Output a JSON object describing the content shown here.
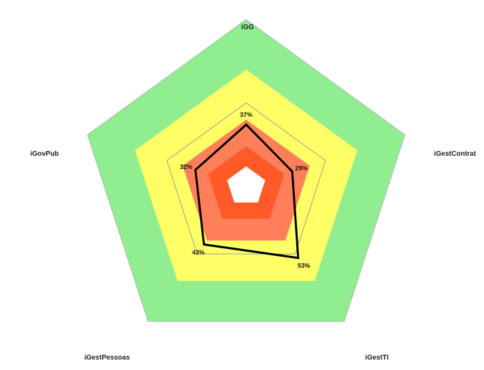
{
  "chart_data": {
    "type": "radar",
    "categories": [
      "iGG",
      "iGestContrat",
      "iGestTI",
      "iGestPessoas",
      "iGovPub"
    ],
    "bands": [
      {
        "from": 0.0,
        "to": 0.12,
        "color": "#ffffff"
      },
      {
        "from": 0.12,
        "to": 0.24,
        "color": "#ff5a28"
      },
      {
        "from": 0.24,
        "to": 0.4,
        "color": "#ff7f5a"
      },
      {
        "from": 0.4,
        "to": 0.7,
        "color": "#ffff66"
      },
      {
        "from": 0.7,
        "to": 1.0,
        "color": "#90ee90"
      }
    ],
    "gridline": 0.5,
    "series": [
      {
        "values": [
          37,
          29,
          53,
          43,
          32
        ],
        "labels": [
          "37%",
          "29%",
          "53%",
          "43%",
          "32%"
        ],
        "color": "#000000"
      }
    ],
    "max": 100
  }
}
